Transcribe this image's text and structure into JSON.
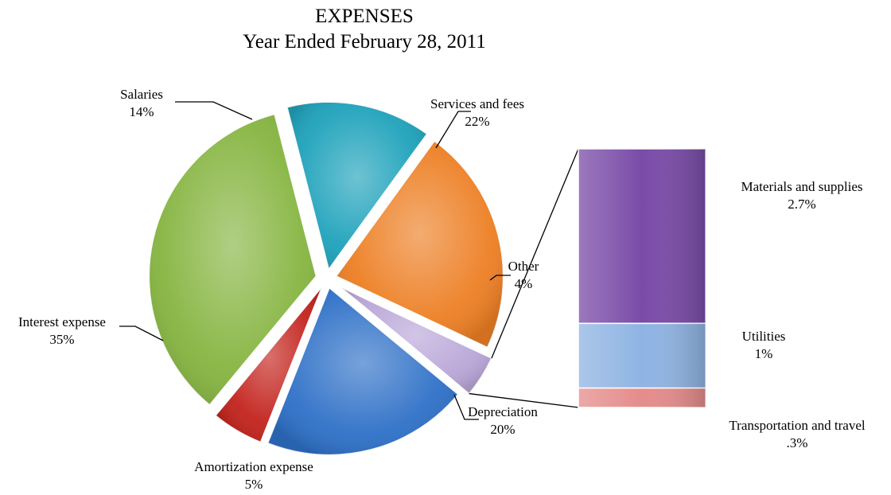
{
  "chart_data": {
    "type": "pie",
    "title": "EXPENSES",
    "subtitle": "Year Ended February 28, 2011",
    "slices": [
      {
        "label": "Services and fees",
        "value": 22,
        "display": "22%",
        "color": "#ed7f24"
      },
      {
        "label": "Other",
        "value": 4,
        "display": "4%",
        "color": "#b9a6d8"
      },
      {
        "label": "Depreciation",
        "value": 20,
        "display": "20%",
        "color": "#2e70c7"
      },
      {
        "label": "Amortization expense",
        "value": 5,
        "display": "5%",
        "color": "#c3231d"
      },
      {
        "label": "Interest expense",
        "value": 35,
        "display": "35%",
        "color": "#86b541"
      },
      {
        "label": "Salaries",
        "value": 14,
        "display": "14%",
        "color": "#1ea2bb"
      }
    ],
    "other_breakdown": {
      "type": "stacked-bar",
      "of_slice": "Other",
      "segments": [
        {
          "label": "Materials and supplies",
          "value": 2.7,
          "display": "2.7%",
          "color": "#7a4ca8"
        },
        {
          "label": "Utilities",
          "value": 1,
          "display": "1%",
          "color": "#8fb4e3"
        },
        {
          "label": "Transportation and travel",
          "value": 0.3,
          "display": ".3%",
          "color": "#e58c8c"
        }
      ]
    }
  }
}
